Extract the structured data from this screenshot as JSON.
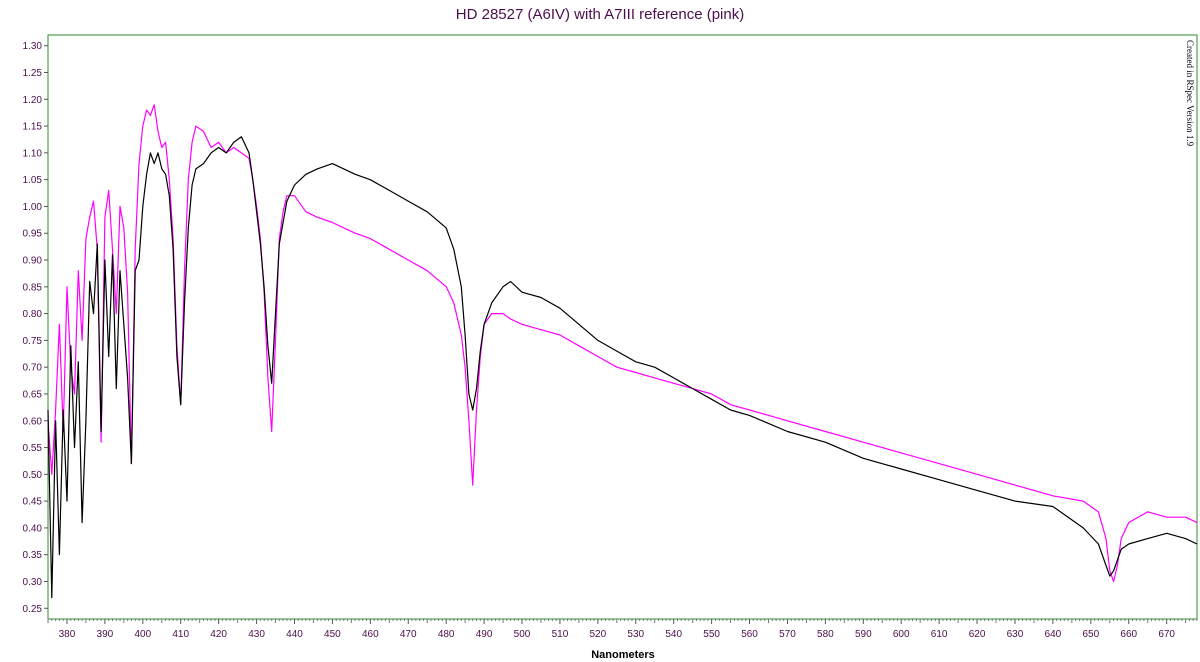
{
  "chart_data": {
    "type": "line",
    "title": "HD 28527 (A6IV) with A7III reference (pink)",
    "xlabel": "Nanometers",
    "ylabel": "",
    "xlim": [
      375,
      678
    ],
    "ylim": [
      0.23,
      1.32
    ],
    "x_ticks": [
      380,
      390,
      400,
      410,
      420,
      430,
      440,
      450,
      460,
      470,
      480,
      490,
      500,
      510,
      520,
      530,
      540,
      550,
      560,
      570,
      580,
      590,
      600,
      610,
      620,
      630,
      640,
      650,
      660,
      670
    ],
    "y_ticks": [
      0.25,
      0.3,
      0.35,
      0.4,
      0.45,
      0.5,
      0.55,
      0.6,
      0.65,
      0.7,
      0.75,
      0.8,
      0.85,
      0.9,
      0.95,
      1.0,
      1.05,
      1.1,
      1.15,
      1.2,
      1.25,
      1.3
    ],
    "grid": false,
    "watermark": "Created in RSpec Version 1.9",
    "colors": {
      "frame": "#2e8b2e",
      "text": "#4b0f4b",
      "target": "#000000",
      "reference": "#ff00ff"
    },
    "series": [
      {
        "name": "HD 28527 (A6IV)",
        "color": "#000000",
        "x": [
          375,
          376,
          377,
          378,
          379,
          380,
          381,
          382,
          383,
          384,
          385,
          386,
          387,
          388,
          389,
          390,
          391,
          392,
          393,
          394,
          395,
          396,
          397,
          398,
          399,
          400,
          401,
          402,
          403,
          404,
          405,
          406,
          407,
          408,
          409,
          410,
          411,
          412,
          413,
          414,
          416,
          418,
          420,
          422,
          424,
          426,
          428,
          429,
          430,
          431,
          432,
          433,
          434,
          435,
          436,
          437,
          438,
          440,
          443,
          446,
          450,
          453,
          456,
          460,
          465,
          470,
          475,
          480,
          482,
          484,
          485,
          486,
          487,
          488,
          489,
          490,
          492,
          495,
          497,
          500,
          505,
          510,
          515,
          520,
          525,
          530,
          535,
          540,
          545,
          550,
          555,
          560,
          570,
          580,
          590,
          600,
          610,
          620,
          630,
          640,
          648,
          652,
          654,
          655,
          656,
          657,
          658,
          660,
          665,
          670,
          675,
          678
        ],
        "values": [
          0.62,
          0.27,
          0.6,
          0.35,
          0.62,
          0.45,
          0.74,
          0.55,
          0.71,
          0.41,
          0.6,
          0.86,
          0.8,
          0.93,
          0.58,
          0.9,
          0.72,
          0.91,
          0.66,
          0.88,
          0.78,
          0.68,
          0.52,
          0.88,
          0.9,
          1.0,
          1.06,
          1.1,
          1.08,
          1.1,
          1.07,
          1.06,
          1.02,
          0.92,
          0.72,
          0.63,
          0.82,
          0.96,
          1.04,
          1.07,
          1.08,
          1.1,
          1.11,
          1.1,
          1.12,
          1.13,
          1.1,
          1.05,
          0.99,
          0.93,
          0.85,
          0.74,
          0.67,
          0.8,
          0.93,
          0.97,
          1.01,
          1.04,
          1.06,
          1.07,
          1.08,
          1.07,
          1.06,
          1.05,
          1.03,
          1.01,
          0.99,
          0.96,
          0.92,
          0.85,
          0.76,
          0.65,
          0.62,
          0.66,
          0.73,
          0.78,
          0.82,
          0.85,
          0.86,
          0.84,
          0.83,
          0.81,
          0.78,
          0.75,
          0.73,
          0.71,
          0.7,
          0.68,
          0.66,
          0.64,
          0.62,
          0.61,
          0.58,
          0.56,
          0.53,
          0.51,
          0.49,
          0.47,
          0.45,
          0.44,
          0.4,
          0.37,
          0.33,
          0.31,
          0.32,
          0.34,
          0.36,
          0.37,
          0.38,
          0.39,
          0.38,
          0.37
        ]
      },
      {
        "name": "A7III reference",
        "color": "#ff00ff",
        "x": [
          375,
          376,
          377,
          378,
          379,
          380,
          381,
          382,
          383,
          384,
          385,
          386,
          387,
          388,
          389,
          390,
          391,
          392,
          393,
          394,
          395,
          396,
          397,
          398,
          399,
          400,
          401,
          402,
          403,
          404,
          405,
          406,
          407,
          408,
          409,
          410,
          411,
          412,
          413,
          414,
          416,
          418,
          420,
          422,
          424,
          426,
          428,
          429,
          430,
          431,
          432,
          433,
          434,
          435,
          436,
          437,
          438,
          440,
          443,
          446,
          450,
          453,
          456,
          460,
          465,
          470,
          475,
          480,
          482,
          484,
          485,
          486,
          487,
          488,
          489,
          490,
          492,
          495,
          497,
          500,
          505,
          510,
          515,
          520,
          525,
          530,
          535,
          540,
          545,
          550,
          555,
          560,
          570,
          580,
          590,
          600,
          610,
          620,
          630,
          640,
          648,
          652,
          654,
          655,
          656,
          657,
          658,
          660,
          665,
          670,
          675,
          678
        ],
        "values": [
          0.6,
          0.5,
          0.62,
          0.78,
          0.58,
          0.85,
          0.7,
          0.65,
          0.88,
          0.75,
          0.94,
          0.98,
          1.01,
          0.92,
          0.56,
          0.98,
          1.03,
          0.92,
          0.8,
          1.0,
          0.96,
          0.84,
          0.52,
          0.92,
          1.08,
          1.15,
          1.18,
          1.17,
          1.19,
          1.14,
          1.11,
          1.12,
          1.05,
          0.94,
          0.74,
          0.63,
          0.88,
          1.05,
          1.12,
          1.15,
          1.14,
          1.11,
          1.12,
          1.1,
          1.11,
          1.1,
          1.09,
          1.05,
          1.0,
          0.94,
          0.84,
          0.68,
          0.58,
          0.75,
          0.94,
          0.99,
          1.02,
          1.02,
          0.99,
          0.98,
          0.97,
          0.96,
          0.95,
          0.94,
          0.92,
          0.9,
          0.88,
          0.85,
          0.82,
          0.76,
          0.7,
          0.6,
          0.48,
          0.62,
          0.72,
          0.78,
          0.8,
          0.8,
          0.79,
          0.78,
          0.77,
          0.76,
          0.74,
          0.72,
          0.7,
          0.69,
          0.68,
          0.67,
          0.66,
          0.65,
          0.63,
          0.62,
          0.6,
          0.58,
          0.56,
          0.54,
          0.52,
          0.5,
          0.48,
          0.46,
          0.45,
          0.43,
          0.38,
          0.32,
          0.3,
          0.33,
          0.38,
          0.41,
          0.43,
          0.42,
          0.42,
          0.41
        ]
      }
    ]
  }
}
